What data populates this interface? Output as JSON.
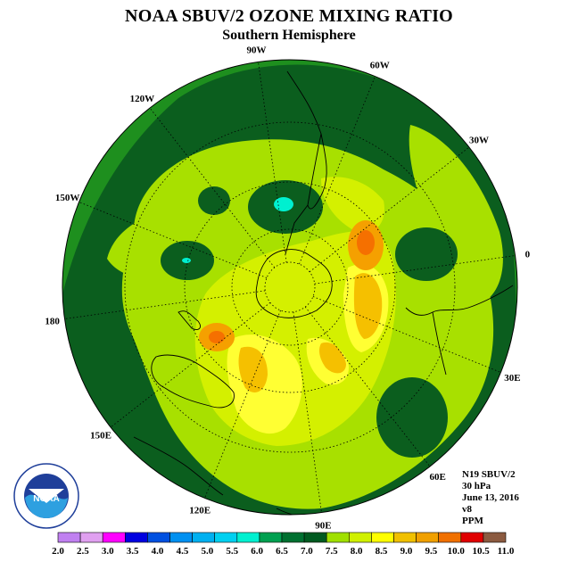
{
  "header": {
    "title": "NOAA SBUV/2 OZONE MIXING RATIO",
    "subtitle": "Southern Hemisphere"
  },
  "map": {
    "projection": "south polar stereographic",
    "longitude_labels": [
      {
        "text": "0",
        "lon": 0
      },
      {
        "text": "30W",
        "lon": -30
      },
      {
        "text": "60W",
        "lon": -60
      },
      {
        "text": "90W",
        "lon": -90
      },
      {
        "text": "120W",
        "lon": -120
      },
      {
        "text": "150W",
        "lon": -150
      },
      {
        "text": "180",
        "lon": 180
      },
      {
        "text": "150E",
        "lon": 150
      },
      {
        "text": "120E",
        "lon": 120
      },
      {
        "text": "90E",
        "lon": 90
      },
      {
        "text": "60E",
        "lon": 60
      },
      {
        "text": "30E",
        "lon": 30
      }
    ],
    "latitude_circles": [
      -80,
      -60,
      -40,
      -20
    ],
    "background_color": "#1a8a1a"
  },
  "info": {
    "satellite": "N19 SBUV/2",
    "level": "30 hPa",
    "date": "June 13, 2016",
    "version": "v8",
    "units": "PPM"
  },
  "logo": {
    "text": "NOAA",
    "ring_text": "NATIONAL OCEANIC AND ATMOSPHERIC ADMINISTRATION · U.S. DEPARTMENT OF COMMERCE"
  },
  "colorbar": {
    "labels": [
      "2.0",
      "2.5",
      "3.0",
      "3.5",
      "4.0",
      "4.5",
      "5.0",
      "5.5",
      "6.0",
      "6.5",
      "7.0",
      "7.5",
      "8.0",
      "8.5",
      "9.0",
      "9.5",
      "10.0",
      "10.5",
      "11.0"
    ],
    "colors": [
      "#c080f0",
      "#e0a0f0",
      "#ff00ff",
      "#0000e0",
      "#0050e0",
      "#0090f0",
      "#00b0f0",
      "#00d0f0",
      "#00f0d0",
      "#00a050",
      "#007030",
      "#005a20",
      "#a0e000",
      "#d0f000",
      "#ffff00",
      "#f0c000",
      "#f0a000",
      "#f07000",
      "#e00000",
      "#8b5a40"
    ]
  }
}
